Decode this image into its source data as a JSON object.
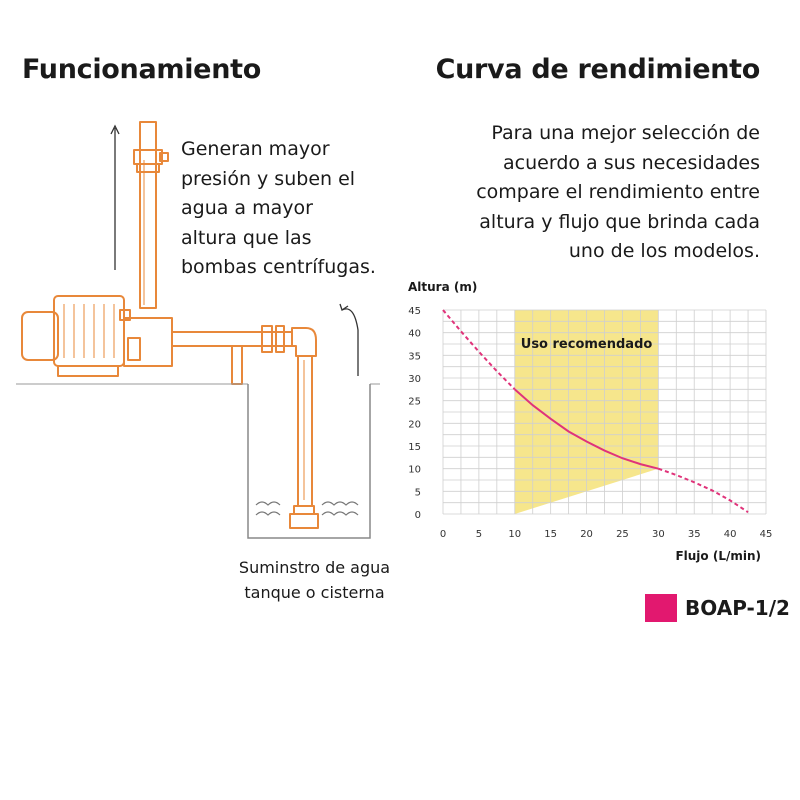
{
  "left": {
    "title": "Funcionamiento",
    "description_lines": [
      "Generan mayor",
      "presión y suben el",
      "agua a mayor",
      "altura que las",
      "bombas centrífugas."
    ],
    "caption_lines": [
      "Suminstro de agua",
      "tanque o cisterna"
    ]
  },
  "right": {
    "title": "Curva de rendimiento",
    "intro_lines": [
      "Para una mejor selección de",
      "acuerdo a sus necesidades",
      "compare el rendimiento entre",
      "altura y flujo que brinda cada",
      "uno de los modelos."
    ]
  },
  "colors": {
    "pump_outline": "#E8883A",
    "curve": "#E0337A",
    "zone": "#F6E68C",
    "grid": "#CFCFCF",
    "legend_swatch": "#E2186F"
  },
  "chart_data": {
    "type": "line",
    "xlabel": "Flujo (L/min)",
    "ylabel": "Altura (m)",
    "xlim": [
      0,
      45
    ],
    "ylim": [
      0,
      45
    ],
    "x_ticks": [
      "0",
      "5",
      "10",
      "15",
      "20",
      "25",
      "30",
      "35",
      "40",
      "45"
    ],
    "y_ticks": [
      "0",
      "5",
      "10",
      "15",
      "20",
      "25",
      "30",
      "35",
      "40",
      "45"
    ],
    "grid": true,
    "recommended_zone": {
      "label": "Uso recomendado",
      "x_range": [
        10,
        30
      ],
      "y_top": 45
    },
    "series": [
      {
        "name": "BOAP-1/2",
        "x": [
          0,
          2.5,
          5,
          7.5,
          10,
          12.5,
          15,
          17.5,
          20,
          22.5,
          25,
          27.5,
          30,
          32.5,
          35,
          37.5,
          40,
          42.5
        ],
        "y": [
          45,
          40.3,
          35.8,
          31.5,
          27.5,
          24,
          21,
          18.2,
          16,
          14,
          12.3,
          11,
          10,
          8.6,
          7,
          5.2,
          3,
          0.4
        ]
      }
    ],
    "legend": [
      {
        "label": "BOAP-1/2"
      }
    ]
  }
}
